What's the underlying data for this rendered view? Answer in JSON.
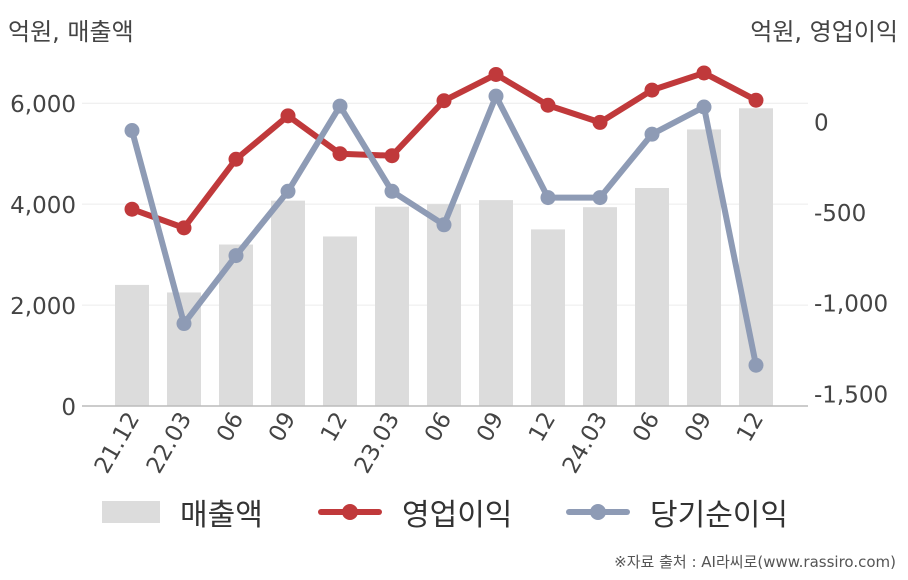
{
  "units": {
    "left": "억원, 매출액",
    "right": "억원, 영업이익"
  },
  "colors": {
    "bar": "#dcdcdc",
    "operating": "#c0393b",
    "net": "#8e9bb5",
    "axis": "#bbbbbb",
    "grid": "#ececec"
  },
  "chart_data": {
    "type": "bar+line",
    "categories": [
      "21.12",
      "22.03",
      "06",
      "09",
      "12",
      "23.03",
      "06",
      "09",
      "12",
      "24.03",
      "06",
      "09",
      "12"
    ],
    "left_axis": {
      "ticks": [
        "0",
        "2,000",
        "4,000",
        "6,000"
      ],
      "range": [
        0,
        6500
      ]
    },
    "right_axis": {
      "ticks": [
        "0",
        "-500",
        "-1,000",
        "-1,500"
      ],
      "range": [
        -1570,
        240
      ]
    },
    "series": [
      {
        "name": "매출액",
        "kind": "bar",
        "axis": "left",
        "values": [
          2400,
          2250,
          3200,
          4070,
          3360,
          3950,
          4000,
          4080,
          3500,
          3940,
          4320,
          5480,
          5900
        ]
      },
      {
        "name": "영업이익",
        "kind": "line",
        "axis": "left",
        "values": [
          3900,
          3530,
          4890,
          5750,
          5000,
          4960,
          6050,
          6570,
          5960,
          5620,
          6260,
          6600,
          6060
        ]
      },
      {
        "name": "당기순이익",
        "kind": "line",
        "axis": "right",
        "values": [
          -50,
          -1115,
          -740,
          -385,
          85,
          -385,
          -570,
          140,
          -420,
          -420,
          -70,
          80,
          -1345
        ]
      }
    ]
  },
  "legend": [
    {
      "label": "매출액"
    },
    {
      "label": "영업이익"
    },
    {
      "label": "당기순이익"
    }
  ],
  "source": "※자료 출처 : AI라씨로(www.rassiro.com)"
}
